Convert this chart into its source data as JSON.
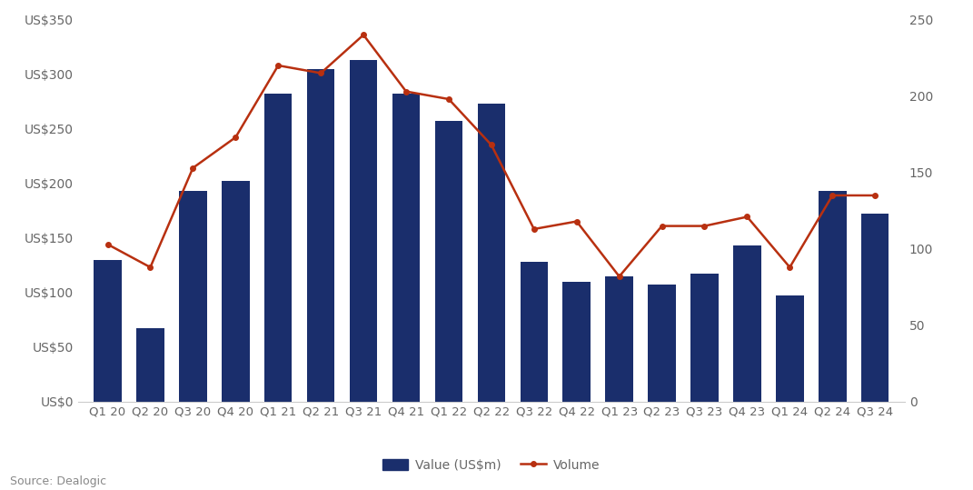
{
  "categories": [
    "Q1 20",
    "Q2 20",
    "Q3 20",
    "Q4 20",
    "Q1 21",
    "Q2 21",
    "Q3 21",
    "Q4 21",
    "Q1 22",
    "Q2 22",
    "Q3 22",
    "Q4 22",
    "Q1 23",
    "Q2 23",
    "Q3 23",
    "Q4 23",
    "Q1 24",
    "Q2 24",
    "Q3 24"
  ],
  "bar_values": [
    130,
    67,
    193,
    202,
    282,
    305,
    313,
    282,
    257,
    273,
    128,
    110,
    115,
    107,
    117,
    143,
    97,
    193,
    172
  ],
  "line_values": [
    103,
    88,
    153,
    173,
    220,
    215,
    240,
    203,
    198,
    168,
    113,
    118,
    82,
    115,
    115,
    121,
    88,
    135,
    135
  ],
  "bar_color": "#1a2e6c",
  "line_color": "#b83010",
  "bar_label": "Value (US$m)",
  "line_label": "Volume",
  "left_ylim": [
    0,
    350
  ],
  "right_ylim": [
    0,
    250
  ],
  "left_yticks": [
    0,
    50,
    100,
    150,
    200,
    250,
    300,
    350
  ],
  "left_yticklabels": [
    "US$0",
    "US$50",
    "US$100",
    "US$150",
    "US$200",
    "US$250",
    "US$300",
    "US$350"
  ],
  "right_yticks": [
    0,
    50,
    100,
    150,
    200,
    250
  ],
  "right_yticklabels": [
    "0",
    "50",
    "100",
    "150",
    "200",
    "250"
  ],
  "source_text": "Source: Dealogic",
  "background_color": "#ffffff",
  "label_color": "#666666",
  "spine_color": "#cccccc"
}
